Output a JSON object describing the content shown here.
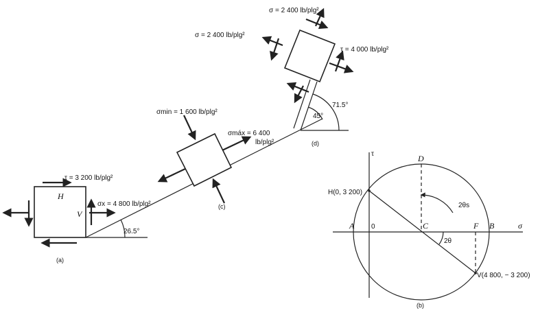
{
  "fig_a": {
    "tau": "τ = 3 200  lb/plg²",
    "sigma_x": "σx = 4 800  lb/plg²",
    "H": "H",
    "V": "V",
    "angle": "26.5°",
    "caption": "(a)"
  },
  "fig_c": {
    "sigma_min": "σmin = 1 600  lb/plg²",
    "sigma_max": "σmáx = 6 400",
    "sigma_max_unit": "lb/plg²",
    "caption": "(c)"
  },
  "fig_d": {
    "sigma_top": "σ = 2 400  lb/plg²",
    "sigma_left": "σ = 2 400  lb/plg²",
    "tau": "τ = 4 000  lb/plg²",
    "angle_45": "45°",
    "angle_715": "71.5°",
    "caption": "(d)"
  },
  "fig_b": {
    "tau_axis": "τ",
    "sigma_axis": "σ",
    "D": "D",
    "H": "H(0, 3 200)",
    "theta_s": "2θs",
    "A": "A",
    "O": "0",
    "C": "C",
    "F": "F",
    "B": "B",
    "two_theta": "2θ",
    "V": "V(4 800,  − 3 200)",
    "caption": "(b)"
  }
}
